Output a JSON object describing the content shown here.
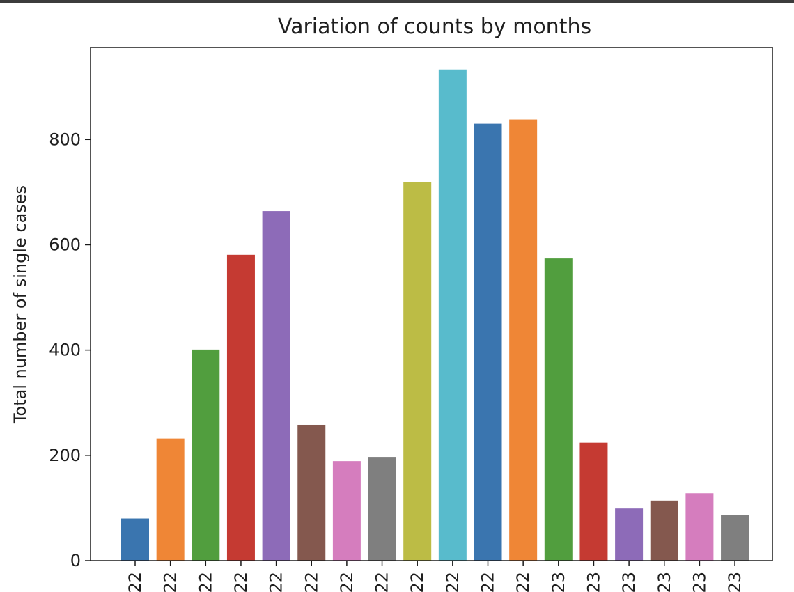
{
  "chart_data": {
    "type": "bar",
    "title": "Variation of counts by months",
    "xlabel": "",
    "ylabel": "Total number of single cases",
    "ylim": [
      0,
      975
    ],
    "yticks": [
      0,
      200,
      400,
      600,
      800
    ],
    "categories": [
      "22",
      "22",
      "22",
      "22",
      "22",
      "22",
      "22",
      "22",
      "22",
      "22",
      "22",
      "22",
      "23",
      "23",
      "23",
      "23",
      "23",
      "23"
    ],
    "values": [
      80,
      232,
      401,
      581,
      664,
      258,
      189,
      197,
      719,
      933,
      830,
      838,
      574,
      224,
      99,
      114,
      128,
      86
    ],
    "colors": [
      "#3a75af",
      "#ef8636",
      "#519e3e",
      "#c53a32",
      "#8d6bb8",
      "#84584e",
      "#d57dbe",
      "#7f7f7f",
      "#bcbc45",
      "#58bbcc",
      "#3a75af",
      "#ef8636",
      "#519e3e",
      "#c53a32",
      "#8d6bb8",
      "#84584e",
      "#d57dbe",
      "#7f7f7f"
    ],
    "grid": false,
    "legend": "none"
  }
}
